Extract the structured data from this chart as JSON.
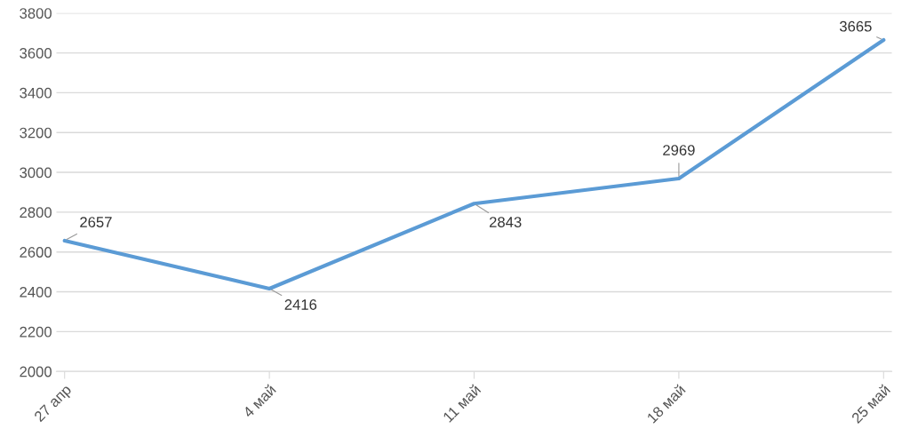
{
  "chart_data": {
    "type": "line",
    "categories": [
      "27 апр",
      "4 май",
      "11 май",
      "18 май",
      "25 май"
    ],
    "series": [
      {
        "color": "#5b9bd5",
        "values": [
          2657,
          2416,
          2843,
          2969,
          3665
        ]
      }
    ],
    "ylim": [
      2000,
      3800
    ],
    "yticks": [
      2000,
      2200,
      2400,
      2600,
      2800,
      3000,
      3200,
      3400,
      3600,
      3800
    ],
    "grid": "y",
    "data_labels": true,
    "marker": "none",
    "line_style": "solid",
    "legend": false
  }
}
